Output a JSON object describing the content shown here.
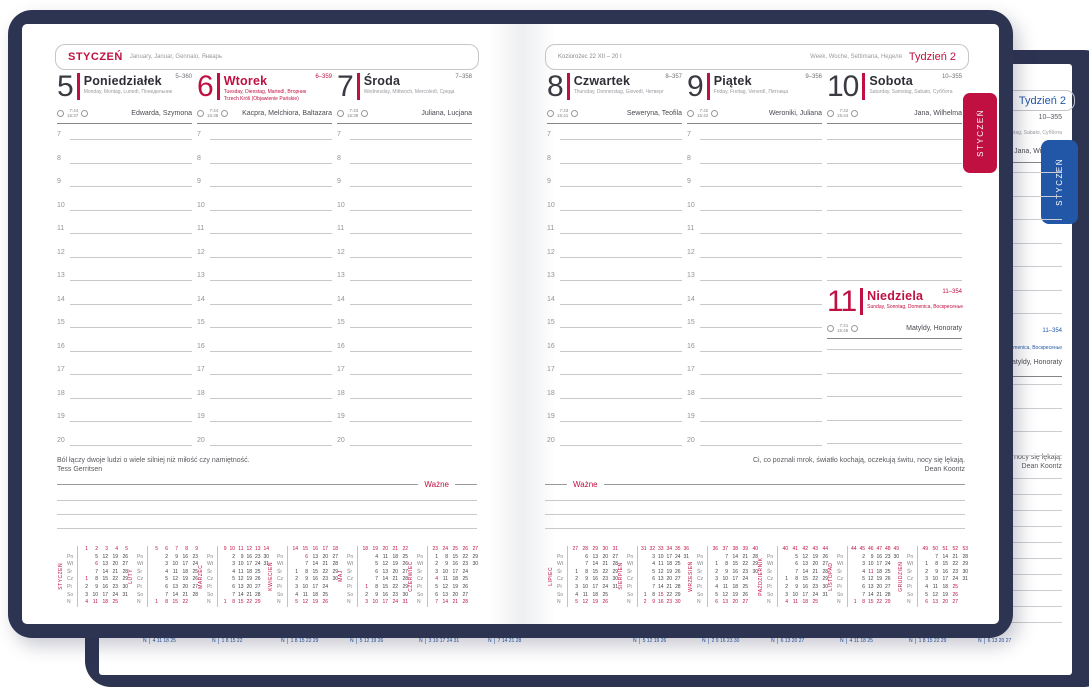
{
  "colors": {
    "red": "#c01042",
    "blue": "#2257a7",
    "navy": "#2d3452"
  },
  "front": {
    "tab_label": "STYCZEŃ",
    "left_header": {
      "month": "STYCZEŃ",
      "translations": "January, Januar, Gennaio, Январь"
    },
    "right_header": {
      "zodiac": "Koziorożec 22 XII – 20 I",
      "week_words": "Week, Woche, Settimana, Неделя",
      "week_label": "Tydzień 2"
    },
    "wazne": "Ważne",
    "hours": [
      "7",
      "8",
      "9",
      "10",
      "11",
      "12",
      "13",
      "14",
      "15",
      "16",
      "17",
      "18",
      "19",
      "20"
    ],
    "days": [
      {
        "num": "5",
        "name": "Poniedziałek",
        "trans": "Monday, Montag, Lunedì, Понедельник",
        "extra": "",
        "doy": "5–360",
        "sunrise": "7:44",
        "sunset": "15:37",
        "names": "Edwarda, Szymona",
        "red": false
      },
      {
        "num": "6",
        "name": "Wtorek",
        "trans": "Tuesday, Dienstag, Martedì, Вторник",
        "extra": "Trzech Króli (Objawienie Pańskie)",
        "doy": "6–359",
        "sunrise": "7:44",
        "sunset": "15:38",
        "names": "Kacpra, Melchiora, Baltazara",
        "red": true
      },
      {
        "num": "7",
        "name": "Środa",
        "trans": "Wednesday, Mittwoch, Mercoledì, Среда",
        "extra": "",
        "doy": "7–358",
        "sunrise": "7:43",
        "sunset": "15:39",
        "names": "Juliana, Lucjana",
        "red": false
      },
      {
        "num": "8",
        "name": "Czwartek",
        "trans": "Thursday, Donnerstag, Giovedì, Четверг",
        "extra": "",
        "doy": "8–357",
        "sunrise": "7:43",
        "sunset": "15:41",
        "names": "Seweryna, Teofila",
        "red": false
      },
      {
        "num": "9",
        "name": "Piątek",
        "trans": "Friday, Freitag, Venerdì, Пятница",
        "extra": "",
        "doy": "9–356",
        "sunrise": "7:42",
        "sunset": "15:42",
        "names": "Weroniki, Juliana",
        "red": false
      },
      {
        "num": "10",
        "name": "Sobota",
        "trans": "Saturday, Samstag, Sabato, Суббота",
        "extra": "",
        "doy": "10–355",
        "sunrise": "7:42",
        "sunset": "15:44",
        "names": "Jana, Wilhelma",
        "red": false
      },
      {
        "num": "11",
        "name": "Niedziela",
        "trans": "Sunday, Sonntag, Domenica, Воскресенье",
        "extra": "",
        "doy": "11–354",
        "sunrise": "7:41",
        "sunset": "15:45",
        "names": "Matyldy, Honoraty",
        "red": true
      }
    ],
    "quote_left": {
      "text": "Ból łączy dwoje ludzi o wiele silniej niż miłość czy namiętność.",
      "author": "Tess Gerritsen"
    },
    "quote_right": {
      "text": "Ci, co poznali mrok, światło kochają, oczekują świtu, nocy się lękają.",
      "author": "Dean Koontz"
    },
    "mini": {
      "weekday_labels": [
        "Pn",
        "Wt",
        "Śr",
        "Cz",
        "Pt",
        "So",
        "N"
      ],
      "months": [
        {
          "name": "STYCZEŃ",
          "weeks": [
            "1",
            "2",
            "3",
            "4",
            "5"
          ],
          "red": [
            1,
            6
          ],
          "rows": [
            [
              "",
              "5",
              "12",
              "19",
              "26"
            ],
            [
              "",
              "6",
              "13",
              "20",
              "27"
            ],
            [
              "",
              "7",
              "14",
              "21",
              "28"
            ],
            [
              "1",
              "8",
              "15",
              "22",
              "29"
            ],
            [
              "2",
              "9",
              "16",
              "23",
              "30"
            ],
            [
              "3",
              "10",
              "17",
              "24",
              "31"
            ],
            [
              "4",
              "11",
              "18",
              "25",
              ""
            ]
          ]
        },
        {
          "name": "LUTY",
          "weeks": [
            "5",
            "6",
            "7",
            "8",
            "9"
          ],
          "red": [],
          "rows": [
            [
              "",
              "2",
              "9",
              "16",
              "23"
            ],
            [
              "",
              "3",
              "10",
              "17",
              "24"
            ],
            [
              "",
              "4",
              "11",
              "18",
              "25"
            ],
            [
              "",
              "5",
              "12",
              "19",
              "26"
            ],
            [
              "",
              "6",
              "13",
              "20",
              "27"
            ],
            [
              "",
              "7",
              "14",
              "21",
              "28"
            ],
            [
              "1",
              "8",
              "15",
              "22",
              ""
            ]
          ]
        },
        {
          "name": "MARZEC",
          "weeks": [
            "9",
            "10",
            "11",
            "12",
            "13",
            "14"
          ],
          "red": [],
          "rows": [
            [
              "",
              "2",
              "9",
              "16",
              "23",
              "30"
            ],
            [
              "",
              "3",
              "10",
              "17",
              "24",
              "31"
            ],
            [
              "",
              "4",
              "11",
              "18",
              "25",
              ""
            ],
            [
              "",
              "5",
              "12",
              "19",
              "26",
              ""
            ],
            [
              "",
              "6",
              "13",
              "20",
              "27",
              ""
            ],
            [
              "",
              "7",
              "14",
              "21",
              "28",
              ""
            ],
            [
              "1",
              "8",
              "15",
              "22",
              "29",
              ""
            ]
          ]
        },
        {
          "name": "KWIECIEŃ",
          "weeks": [
            "14",
            "15",
            "16",
            "17",
            "18"
          ],
          "red": [
            5,
            6
          ],
          "rows": [
            [
              "",
              "6",
              "13",
              "20",
              "27"
            ],
            [
              "",
              "7",
              "14",
              "21",
              "28"
            ],
            [
              "1",
              "8",
              "15",
              "22",
              "29"
            ],
            [
              "2",
              "9",
              "16",
              "23",
              "30"
            ],
            [
              "3",
              "10",
              "17",
              "24",
              ""
            ],
            [
              "4",
              "11",
              "18",
              "25",
              ""
            ],
            [
              "5",
              "12",
              "19",
              "26",
              ""
            ]
          ]
        },
        {
          "name": "MAJ",
          "weeks": [
            "18",
            "19",
            "20",
            "21",
            "22"
          ],
          "red": [
            1,
            3
          ],
          "rows": [
            [
              "",
              "4",
              "11",
              "18",
              "25"
            ],
            [
              "",
              "5",
              "12",
              "19",
              "26"
            ],
            [
              "",
              "6",
              "13",
              "20",
              "27"
            ],
            [
              "",
              "7",
              "14",
              "21",
              "28"
            ],
            [
              "1",
              "8",
              "15",
              "22",
              "29"
            ],
            [
              "2",
              "9",
              "16",
              "23",
              "30"
            ],
            [
              "3",
              "10",
              "17",
              "24",
              "31"
            ]
          ]
        },
        {
          "name": "CZERWIEC",
          "weeks": [
            "23",
            "24",
            "25",
            "26",
            "27"
          ],
          "red": [
            4
          ],
          "rows": [
            [
              "1",
              "8",
              "15",
              "22",
              "29"
            ],
            [
              "2",
              "9",
              "16",
              "23",
              "30"
            ],
            [
              "3",
              "10",
              "17",
              "24",
              ""
            ],
            [
              "4",
              "11",
              "18",
              "25",
              ""
            ],
            [
              "5",
              "12",
              "19",
              "26",
              ""
            ],
            [
              "6",
              "13",
              "20",
              "27",
              ""
            ],
            [
              "7",
              "14",
              "21",
              "28",
              ""
            ]
          ]
        },
        {
          "name": "LIPIEC",
          "weeks": [
            "27",
            "28",
            "29",
            "30",
            "31"
          ],
          "red": [],
          "rows": [
            [
              "",
              "6",
              "13",
              "20",
              "27"
            ],
            [
              "",
              "7",
              "14",
              "21",
              "28"
            ],
            [
              "1",
              "8",
              "15",
              "22",
              "29"
            ],
            [
              "2",
              "9",
              "16",
              "23",
              "30"
            ],
            [
              "3",
              "10",
              "17",
              "24",
              "31"
            ],
            [
              "4",
              "11",
              "18",
              "25",
              ""
            ],
            [
              "5",
              "12",
              "19",
              "26",
              ""
            ]
          ]
        },
        {
          "name": "SIERPIEŃ",
          "weeks": [
            "31",
            "32",
            "33",
            "34",
            "35",
            "36"
          ],
          "red": [
            15
          ],
          "rows": [
            [
              "",
              "3",
              "10",
              "17",
              "24",
              "31"
            ],
            [
              "",
              "4",
              "11",
              "18",
              "25",
              ""
            ],
            [
              "",
              "5",
              "12",
              "19",
              "26",
              ""
            ],
            [
              "",
              "6",
              "13",
              "20",
              "27",
              ""
            ],
            [
              "",
              "7",
              "14",
              "21",
              "28",
              ""
            ],
            [
              "1",
              "8",
              "15",
              "22",
              "29",
              ""
            ],
            [
              "2",
              "9",
              "16",
              "23",
              "30",
              ""
            ]
          ]
        },
        {
          "name": "WRZESIEŃ",
          "weeks": [
            "36",
            "37",
            "38",
            "39",
            "40"
          ],
          "red": [],
          "rows": [
            [
              "",
              "7",
              "14",
              "21",
              "28"
            ],
            [
              "1",
              "8",
              "15",
              "22",
              "29"
            ],
            [
              "2",
              "9",
              "16",
              "23",
              "30"
            ],
            [
              "3",
              "10",
              "17",
              "24",
              ""
            ],
            [
              "4",
              "11",
              "18",
              "25",
              ""
            ],
            [
              "5",
              "12",
              "19",
              "26",
              ""
            ],
            [
              "6",
              "13",
              "20",
              "27",
              ""
            ]
          ]
        },
        {
          "name": "PAŹDZIERNIK",
          "weeks": [
            "40",
            "41",
            "42",
            "43",
            "44"
          ],
          "red": [],
          "rows": [
            [
              "",
              "5",
              "12",
              "19",
              "26"
            ],
            [
              "",
              "6",
              "13",
              "20",
              "27"
            ],
            [
              "",
              "7",
              "14",
              "21",
              "28"
            ],
            [
              "1",
              "8",
              "15",
              "22",
              "29"
            ],
            [
              "2",
              "9",
              "16",
              "23",
              "30"
            ],
            [
              "3",
              "10",
              "17",
              "24",
              "31"
            ],
            [
              "4",
              "11",
              "18",
              "25",
              ""
            ]
          ]
        },
        {
          "name": "LISTOPAD",
          "weeks": [
            "44",
            "45",
            "46",
            "47",
            "48",
            "49"
          ],
          "red": [
            1,
            11
          ],
          "rows": [
            [
              "",
              "2",
              "9",
              "16",
              "23",
              "30"
            ],
            [
              "",
              "3",
              "10",
              "17",
              "24",
              ""
            ],
            [
              "",
              "4",
              "11",
              "18",
              "25",
              ""
            ],
            [
              "",
              "5",
              "12",
              "19",
              "26",
              ""
            ],
            [
              "",
              "6",
              "13",
              "20",
              "27",
              ""
            ],
            [
              "",
              "7",
              "14",
              "21",
              "28",
              ""
            ],
            [
              "1",
              "8",
              "15",
              "22",
              "29",
              ""
            ]
          ]
        },
        {
          "name": "GRUDZIEŃ",
          "weeks": [
            "49",
            "50",
            "51",
            "52",
            "53"
          ],
          "red": [
            25,
            26
          ],
          "rows": [
            [
              "",
              "7",
              "14",
              "21",
              "28"
            ],
            [
              "1",
              "8",
              "15",
              "22",
              "29"
            ],
            [
              "2",
              "9",
              "16",
              "23",
              "30"
            ],
            [
              "3",
              "10",
              "17",
              "24",
              "31"
            ],
            [
              "4",
              "11",
              "18",
              "25",
              ""
            ],
            [
              "5",
              "12",
              "19",
              "26",
              ""
            ],
            [
              "6",
              "13",
              "20",
              "27",
              ""
            ]
          ]
        }
      ]
    }
  },
  "back": {
    "tab_label": "STYCZEŃ",
    "week_label": "Tydzień 2",
    "doy_top": "10–355",
    "day_trans": "Saturday, Samstag, Sabato, Суббота",
    "names_top": "Jana, Wilhelma",
    "doy_mid": "11–354",
    "sunday_trans": "Sunday, Sonntag, Domenica, Воскресенье",
    "names_mid": "Matyldy, Honoraty",
    "quote": "Ci, co poznali mrok, światło kochają, oczekują świtu, nocy się lękają.",
    "quote_author": "Dean Koontz",
    "n_label": "N",
    "n_rows": [
      "4 11 18 25",
      "1 8 15 22",
      "1 8 15 22 29",
      "5 12 19 26",
      "3 10 17 24 31",
      "7 14 21 28",
      "5 12 19 26",
      "2 9 16 23 30",
      "6 13 20 27",
      "4 11 18 25",
      "1 8 15 22 29",
      "6 13 20 27"
    ]
  }
}
